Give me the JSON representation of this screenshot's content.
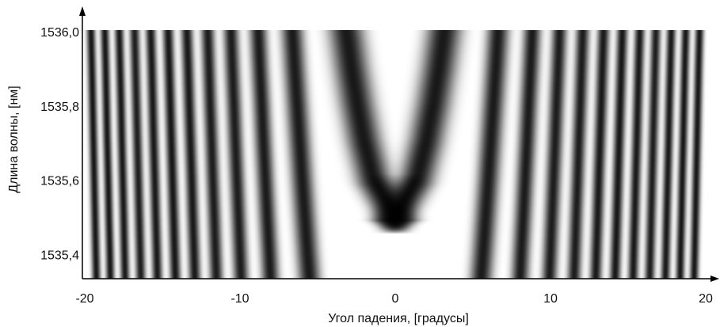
{
  "chart_data": {
    "type": "fringe_map",
    "x_label": "Угол падения, [градусы]",
    "y_label": "Длина волны, [нм]",
    "xlim": [
      -20,
      20
    ],
    "xticks": [
      -20,
      -10,
      0,
      10,
      20
    ],
    "ylim": [
      1535.33,
      1536.0
    ],
    "yticks": [
      {
        "value": 1535.4,
        "label": "1535,4"
      },
      {
        "value": 1535.6,
        "label": "1535,6"
      },
      {
        "value": 1535.8,
        "label": "1535,8"
      },
      {
        "value": 1536.0,
        "label": "1536,0"
      }
    ],
    "color": "#000000",
    "y": [
      1536.0,
      1535.9,
      1535.8,
      1535.7,
      1535.6,
      1535.5,
      1535.4,
      1535.33
    ],
    "series": [
      {
        "values": [
          -3.16,
          -2.83,
          -2.45,
          -2.0,
          -1.41,
          0,
          null,
          null
        ]
      },
      {
        "values": [
          3.16,
          2.83,
          2.45,
          2.0,
          1.41,
          0,
          null,
          null
        ]
      },
      {
        "values": [
          6.63,
          6.48,
          6.32,
          6.16,
          6.0,
          5.83,
          5.66,
          5.53
        ]
      },
      {
        "values": [
          -6.63,
          -6.48,
          -6.32,
          -6.16,
          -6.0,
          -5.83,
          -5.66,
          -5.53
        ]
      },
      {
        "values": [
          8.83,
          8.72,
          8.6,
          8.49,
          8.37,
          8.25,
          8.12,
          8.04
        ]
      },
      {
        "values": [
          -8.83,
          -8.72,
          -8.6,
          -8.49,
          -8.37,
          -8.25,
          -8.12,
          -8.04
        ]
      },
      {
        "values": [
          10.58,
          10.49,
          10.39,
          10.3,
          10.2,
          10.1,
          10.0,
          9.93
        ]
      },
      {
        "values": [
          -10.58,
          -10.49,
          -10.39,
          -10.3,
          -10.2,
          -10.1,
          -10.0,
          -9.93
        ]
      },
      {
        "values": [
          12.08,
          12.0,
          11.92,
          11.83,
          11.75,
          11.66,
          11.58,
          11.52
        ]
      },
      {
        "values": [
          -12.08,
          -12.0,
          -11.92,
          -11.83,
          -11.75,
          -11.66,
          -11.58,
          -11.52
        ]
      },
      {
        "values": [
          13.42,
          13.34,
          13.27,
          13.19,
          13.11,
          13.04,
          12.96,
          12.91
        ]
      },
      {
        "values": [
          -13.42,
          -13.34,
          -13.27,
          -13.19,
          -13.11,
          -13.04,
          -12.96,
          -12.91
        ]
      },
      {
        "values": [
          14.63,
          14.56,
          14.49,
          14.42,
          14.35,
          14.28,
          14.21,
          14.16
        ]
      },
      {
        "values": [
          -14.63,
          -14.56,
          -14.49,
          -14.42,
          -14.35,
          -14.28,
          -14.21,
          -14.16
        ]
      },
      {
        "values": [
          15.75,
          15.68,
          15.62,
          15.56,
          15.49,
          15.43,
          15.36,
          15.32
        ]
      },
      {
        "values": [
          -15.75,
          -15.68,
          -15.62,
          -15.56,
          -15.49,
          -15.43,
          -15.36,
          -15.32
        ]
      },
      {
        "values": [
          16.79,
          16.73,
          16.67,
          16.61,
          16.55,
          16.49,
          16.43,
          16.39
        ]
      },
      {
        "values": [
          -16.79,
          -16.73,
          -16.67,
          -16.61,
          -16.55,
          -16.49,
          -16.43,
          -16.39
        ]
      },
      {
        "values": [
          17.78,
          17.72,
          17.66,
          17.61,
          17.55,
          17.49,
          17.44,
          17.4
        ]
      },
      {
        "values": [
          -17.78,
          -17.72,
          -17.66,
          -17.61,
          -17.55,
          -17.49,
          -17.44,
          -17.4
        ]
      },
      {
        "values": [
          18.71,
          18.65,
          18.6,
          18.55,
          18.49,
          18.44,
          18.38,
          18.35
        ]
      },
      {
        "values": [
          -18.71,
          -18.65,
          -18.6,
          -18.55,
          -18.49,
          -18.44,
          -18.38,
          -18.35
        ]
      },
      {
        "values": [
          19.6,
          19.54,
          19.49,
          19.44,
          19.39,
          19.34,
          19.29,
          19.25
        ]
      },
      {
        "values": [
          -19.6,
          -19.54,
          -19.49,
          -19.44,
          -19.39,
          -19.34,
          -19.29,
          -19.25
        ]
      }
    ]
  }
}
